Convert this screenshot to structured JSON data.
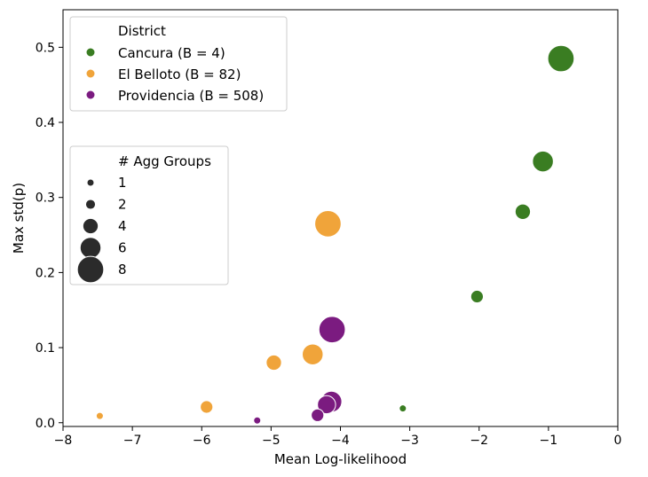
{
  "chart_data": {
    "type": "scatter",
    "xlabel": "Mean Log-likelihood",
    "ylabel": "Max std(p)",
    "xlim": [
      -8,
      0
    ],
    "ylim": [
      -0.005,
      0.55
    ],
    "xticks": [
      -8,
      -7,
      -6,
      -5,
      -4,
      -3,
      -2,
      -1,
      0
    ],
    "xtick_labels": [
      "−8",
      "−7",
      "−6",
      "−5",
      "−4",
      "−3",
      "−2",
      "−1",
      "0"
    ],
    "yticks": [
      0.0,
      0.1,
      0.2,
      0.3,
      0.4,
      0.5
    ],
    "ytick_labels": [
      "0.0",
      "0.1",
      "0.2",
      "0.3",
      "0.4",
      "0.5"
    ],
    "grid": false,
    "hue_legend": {
      "title": "District",
      "placement": "top-left"
    },
    "size_legend": {
      "title": "# Agg Groups",
      "placement": "upper-left-middle",
      "entries": [
        {
          "label": "1",
          "size": 1
        },
        {
          "label": "2",
          "size": 2
        },
        {
          "label": "4",
          "size": 4
        },
        {
          "label": "6",
          "size": 6
        },
        {
          "label": "8",
          "size": 8
        }
      ]
    },
    "series": [
      {
        "name": "Cancura (B = 4)",
        "color": "#3a7d22",
        "points": [
          {
            "x": -0.82,
            "y": 0.485,
            "size": 8
          },
          {
            "x": -1.08,
            "y": 0.348,
            "size": 6
          },
          {
            "x": -1.37,
            "y": 0.281,
            "size": 4
          },
          {
            "x": -2.03,
            "y": 0.168,
            "size": 3
          },
          {
            "x": -3.1,
            "y": 0.019,
            "size": 1
          }
        ]
      },
      {
        "name": "El Belloto (B = 82)",
        "color": "#f0a43a",
        "points": [
          {
            "x": -4.18,
            "y": 0.265,
            "size": 8
          },
          {
            "x": -4.4,
            "y": 0.091,
            "size": 6
          },
          {
            "x": -4.96,
            "y": 0.08,
            "size": 4
          },
          {
            "x": -5.93,
            "y": 0.021,
            "size": 3
          },
          {
            "x": -7.47,
            "y": 0.009,
            "size": 1
          }
        ]
      },
      {
        "name": "Providencia (B = 508)",
        "color": "#7b1b80",
        "points": [
          {
            "x": -4.12,
            "y": 0.124,
            "size": 8
          },
          {
            "x": -4.13,
            "y": 0.028,
            "size": 6
          },
          {
            "x": -4.2,
            "y": 0.024,
            "size": 5
          },
          {
            "x": -4.33,
            "y": 0.01,
            "size": 3
          },
          {
            "x": -5.2,
            "y": 0.003,
            "size": 1
          }
        ]
      }
    ]
  }
}
